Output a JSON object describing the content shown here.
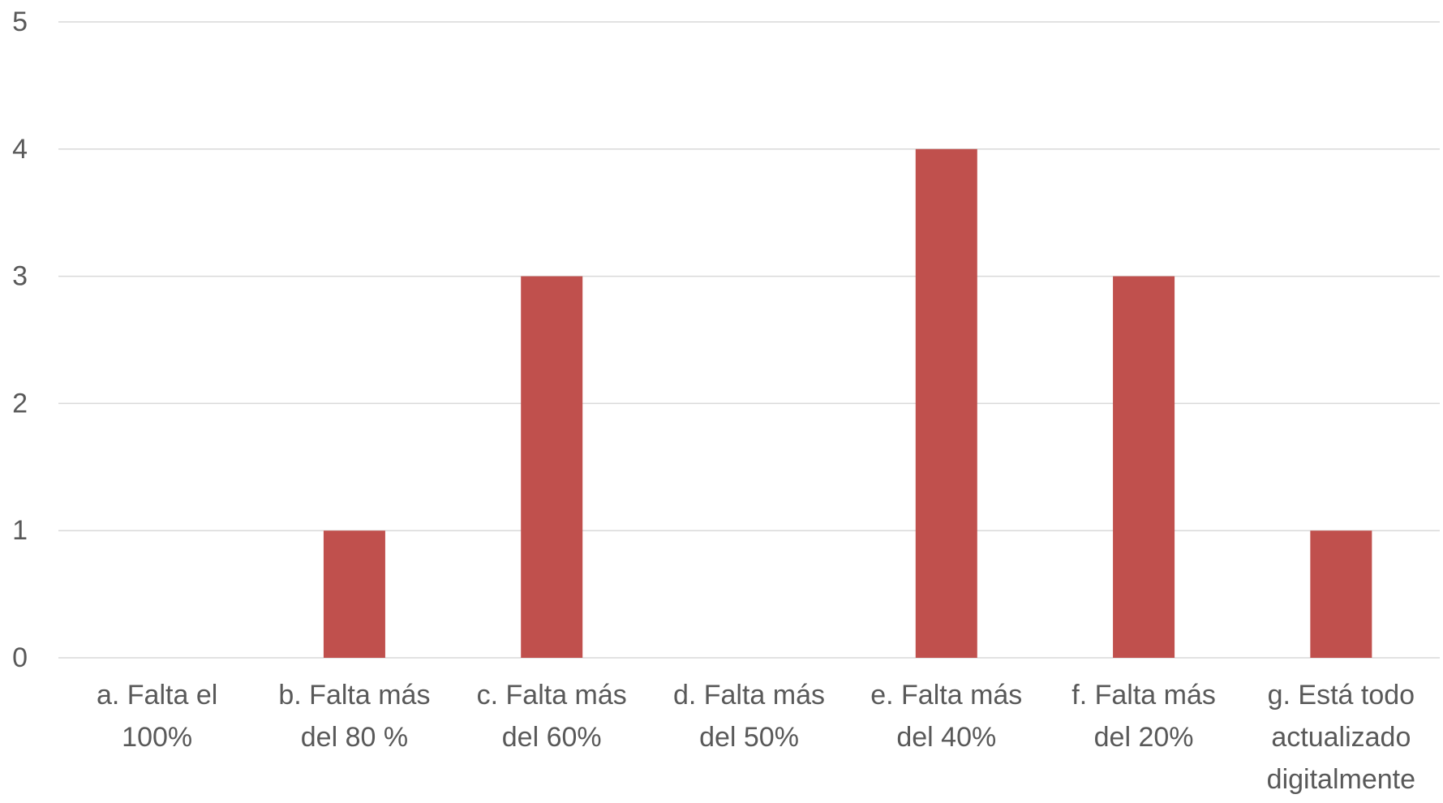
{
  "chart_data": {
    "type": "bar",
    "categories": [
      [
        "a. Falta el",
        "100%"
      ],
      [
        "b. Falta más",
        "del 80 %"
      ],
      [
        "c. Falta más",
        "del 60%"
      ],
      [
        "d. Falta más",
        "del 50%"
      ],
      [
        "e. Falta más",
        "del 40%"
      ],
      [
        "f. Falta más",
        "del 20%"
      ],
      [
        "g. Está todo",
        "actualizado",
        "digitalmente"
      ]
    ],
    "values": [
      0,
      1,
      3,
      0,
      4,
      3,
      1
    ],
    "ylim": [
      0,
      5
    ],
    "yticks": [
      "0",
      "1",
      "2",
      "3",
      "4",
      "5"
    ],
    "grid": true,
    "legend": "none",
    "bar_color": "#c0504d"
  }
}
